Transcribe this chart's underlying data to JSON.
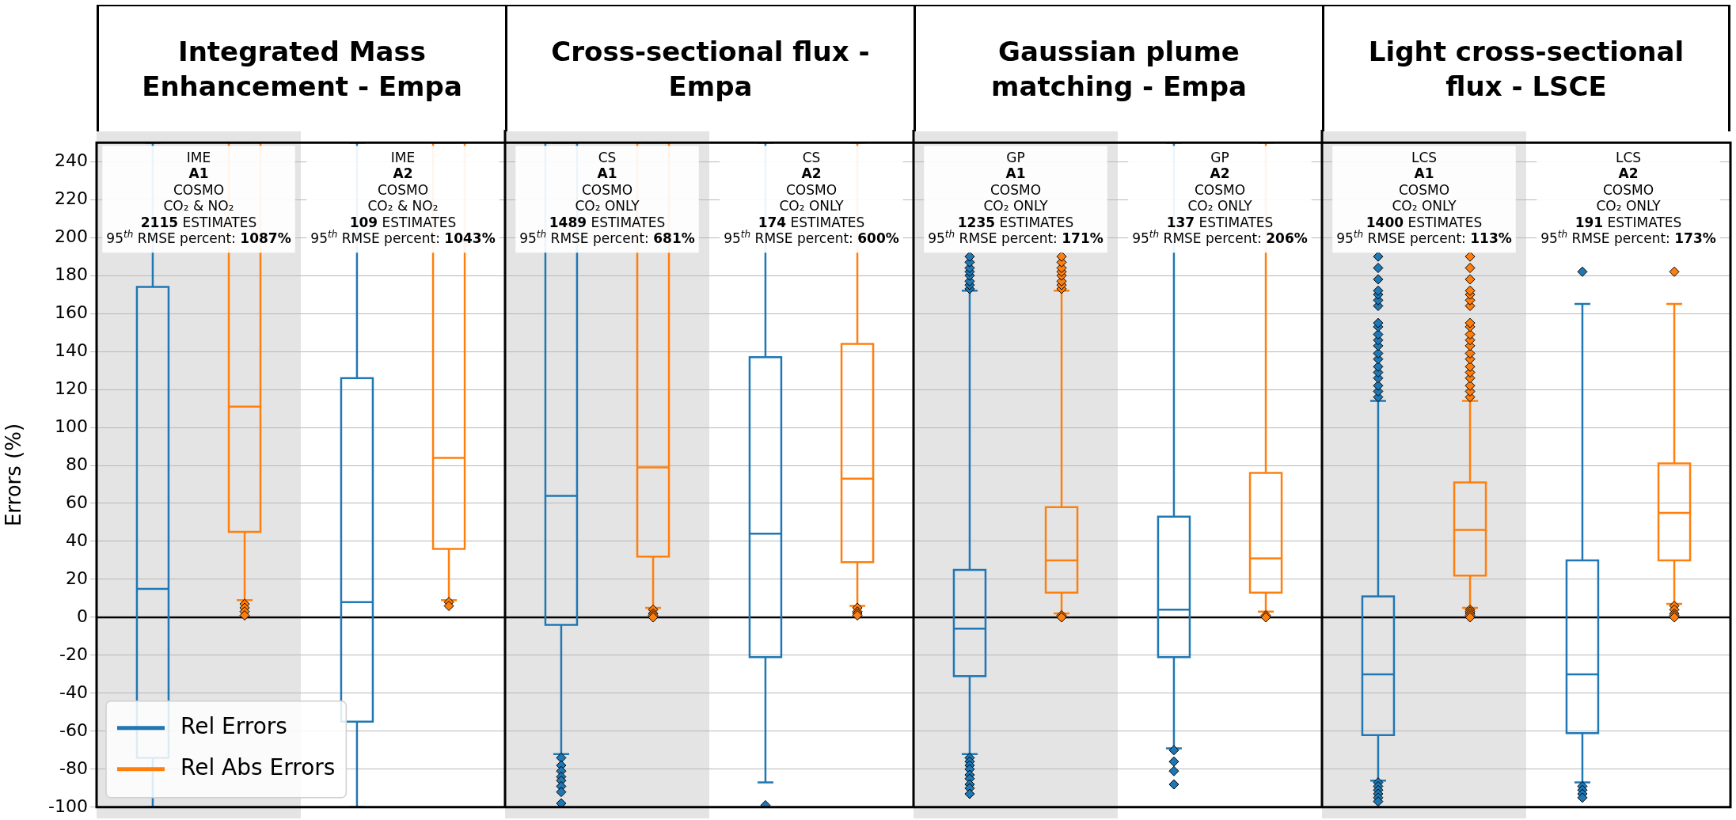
{
  "chart_data": {
    "type": "box",
    "ylabel": "Errors (%)",
    "categories": [
      null,
      null,
      null,
      null,
      null,
      null,
      null,
      null
    ],
    "ylim": [
      -100,
      250
    ],
    "yticks": [
      -100,
      -80,
      -60,
      -40,
      -20,
      0,
      20,
      40,
      60,
      80,
      100,
      120,
      140,
      160,
      180,
      200,
      220,
      240
    ],
    "grid": "y",
    "legend": "bottom left",
    "marker": "diamond",
    "ref_lines": [
      {
        "axis": "y",
        "value": 0,
        "color": "#000000"
      }
    ],
    "annotations": [
      "Integrated Mass Enhancement - Empa",
      "Cross-sectional flux - Empa",
      "Gaussian plume matching - Empa",
      "Light cross-sectional flux - LSCE",
      "IME\nA1\nCOSMO\nCO₂ & NO₂\n2115 ESTIMATES\n95$^{th}$ RMSE percent: 1087%",
      "IME\nA2\nCOSMO\nCO₂ & NO₂\n109 ESTIMATES\n95$^{th}$ RMSE percent: 1043%",
      "CS\nA1\nCOSMO\nCO₂ ONLY\n1489 ESTIMATES\n95$^{th}$ RMSE percent: 681%",
      "CS\nA2\nCOSMO\nCO₂ ONLY\n174 ESTIMATES\n95$^{th}$ RMSE percent: 600%",
      "GP\nA1\nCOSMO\nCO₂ ONLY\n1235 ESTIMATES\n95$^{th}$ RMSE percent: 171%",
      "GP\nA2\nCOSMO\nCO₂ ONLY\n137 ESTIMATES\n95$^{th}$ RMSE percent: 206%",
      "LCS\nA1\nCOSMO\nCO₂ ONLY\n1400 ESTIMATES\n95$^{th}$ RMSE percent: 113%",
      "LCS\nA2\nCOSMO\nCO₂ ONLY\n191 ESTIMATES\n95$^{th}$ RMSE percent: 173%"
    ],
    "series": [
      {
        "name": "Rel Errors",
        "color": "#1f77b4",
        "boxes": [
          {
            "low": -100,
            "q1": -74,
            "median": 15,
            "q3": 174,
            "high": 250
          },
          {
            "low": -100,
            "q1": -55,
            "median": 8,
            "q3": 126,
            "high": 250
          },
          {
            "low": -72,
            "q1": -4,
            "median": 64,
            "q3": 250,
            "high": 250,
            "outliers": [
              -74,
              -78,
              -81,
              -84,
              -86,
              -89,
              -92,
              -98
            ]
          },
          {
            "low": -87,
            "q1": -21,
            "median": 44,
            "q3": 137,
            "high": 250,
            "outliers": [
              -99
            ]
          },
          {
            "low": -72,
            "q1": -31,
            "median": -6,
            "q3": 25,
            "high": 172,
            "outliers": [
              173,
              175,
              177,
              180,
              182,
              184,
              187,
              190,
              -74,
              -76,
              -78,
              -80,
              -83,
              -85,
              -88,
              -90,
              -93
            ]
          },
          {
            "low": -69,
            "q1": -21,
            "median": 4,
            "q3": 53,
            "high": 250,
            "outliers": [
              -70,
              -76,
              -81,
              -88
            ]
          },
          {
            "low": -86,
            "q1": -62,
            "median": -30,
            "q3": 11,
            "high": 114,
            "outliers": [
              116,
              119,
              122,
              126,
              129,
              132,
              136,
              139,
              143,
              146,
              149,
              153,
              155,
              164,
              167,
              170,
              172,
              178,
              184,
              190,
              -87,
              -89,
              -91,
              -93,
              -95,
              -97
            ]
          },
          {
            "low": -87,
            "q1": -61,
            "median": -30,
            "q3": 30,
            "high": 165,
            "outliers": [
              182,
              -89,
              -91,
              -93,
              -95
            ]
          }
        ]
      },
      {
        "name": "Rel Abs Errors",
        "color": "#ff7f0e",
        "boxes": [
          {
            "low": 9,
            "q1": 45,
            "median": 111,
            "q3": 250,
            "high": 250,
            "outliers": [
              7,
              5,
              3,
              1
            ]
          },
          {
            "low": 9,
            "q1": 36,
            "median": 84,
            "q3": 250,
            "high": 250,
            "outliers": [
              8,
              6
            ]
          },
          {
            "low": 5,
            "q1": 32,
            "median": 79,
            "q3": 250,
            "high": 250,
            "outliers": [
              4,
              2,
              1,
              0
            ]
          },
          {
            "low": 6,
            "q1": 29,
            "median": 73,
            "q3": 144,
            "high": 250,
            "outliers": [
              5,
              3,
              2,
              1
            ]
          },
          {
            "low": 2,
            "q1": 13,
            "median": 30,
            "q3": 58,
            "high": 172,
            "outliers": [
              173,
              175,
              177,
              180,
              182,
              184,
              187,
              190,
              1,
              0
            ]
          },
          {
            "low": 3,
            "q1": 13,
            "median": 31,
            "q3": 76,
            "high": 250,
            "outliers": [
              1,
              0
            ]
          },
          {
            "low": 5,
            "q1": 22,
            "median": 46,
            "q3": 71,
            "high": 114,
            "outliers": [
              116,
              119,
              122,
              126,
              129,
              132,
              136,
              139,
              143,
              146,
              149,
              153,
              155,
              164,
              167,
              170,
              172,
              178,
              184,
              190,
              4,
              3,
              2,
              1,
              0
            ]
          },
          {
            "low": 7,
            "q1": 30,
            "median": 55,
            "q3": 81,
            "high": 165,
            "outliers": [
              182,
              6,
              4,
              2,
              1,
              0
            ]
          }
        ]
      }
    ]
  }
}
